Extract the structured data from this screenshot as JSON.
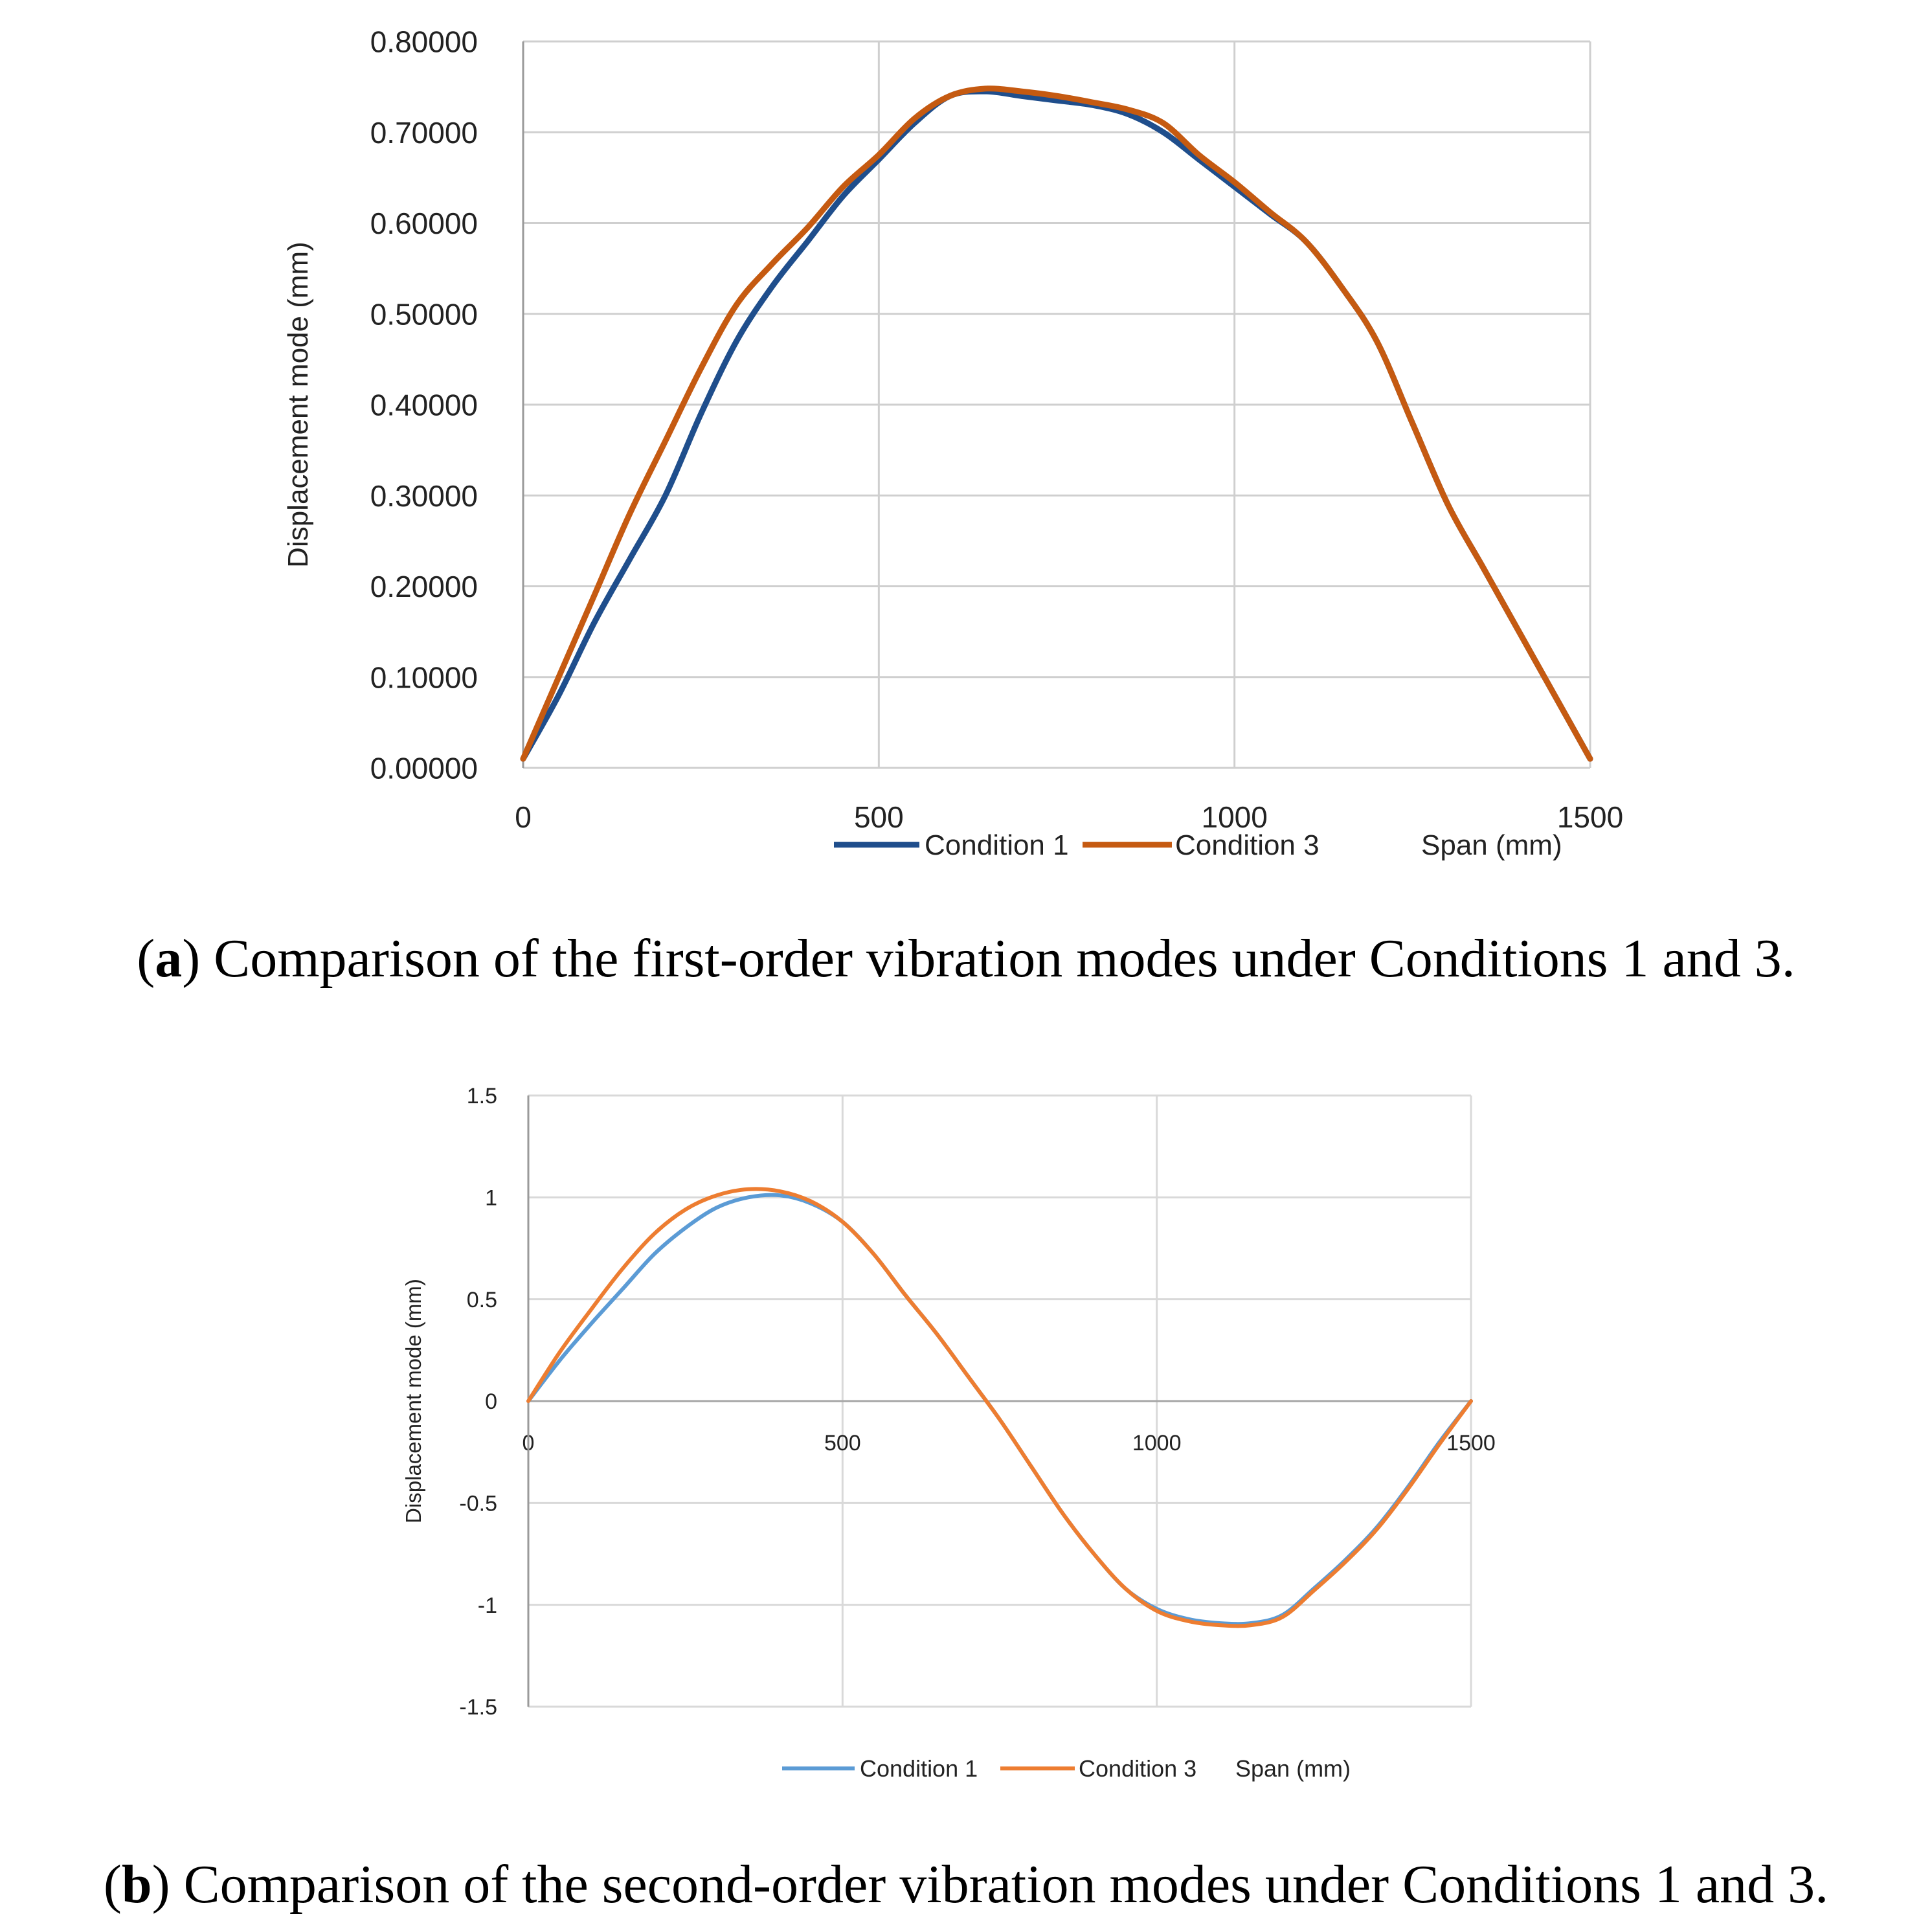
{
  "chart_data": [
    {
      "type": "line",
      "panel": "a",
      "ylabel": "Displacement mode (mm)",
      "xlabel": "Span (mm)",
      "xlim": [
        0,
        1500
      ],
      "ylim": [
        0,
        0.8
      ],
      "xticks": [
        "0",
        "500",
        "1000",
        "1500"
      ],
      "yticks": [
        "0.00000",
        "0.10000",
        "0.20000",
        "0.30000",
        "0.40000",
        "0.50000",
        "0.60000",
        "0.70000",
        "0.80000"
      ],
      "grid": true,
      "legend": "bottom",
      "series": [
        {
          "name": "Condition 1",
          "color": "#1f4e8c",
          "x": [
            0,
            50,
            100,
            150,
            200,
            250,
            300,
            350,
            400,
            450,
            500,
            550,
            600,
            650,
            700,
            750,
            800,
            850,
            900,
            950,
            1000,
            1050,
            1100,
            1150,
            1200,
            1250,
            1300,
            1350,
            1400,
            1450,
            1500
          ],
          "y": [
            0.01,
            0.08,
            0.16,
            0.23,
            0.3,
            0.39,
            0.47,
            0.53,
            0.58,
            0.63,
            0.67,
            0.71,
            0.74,
            0.745,
            0.74,
            0.735,
            0.73,
            0.72,
            0.7,
            0.67,
            0.64,
            0.61,
            0.58,
            0.53,
            0.47,
            0.38,
            0.29,
            0.22,
            0.15,
            0.08,
            0.01
          ]
        },
        {
          "name": "Condition 3",
          "color": "#c55a11",
          "x": [
            0,
            50,
            100,
            150,
            200,
            250,
            300,
            350,
            400,
            450,
            500,
            550,
            600,
            650,
            700,
            750,
            800,
            850,
            900,
            950,
            1000,
            1050,
            1100,
            1150,
            1200,
            1250,
            1300,
            1350,
            1400,
            1450,
            1500
          ],
          "y": [
            0.01,
            0.1,
            0.19,
            0.28,
            0.36,
            0.44,
            0.51,
            0.555,
            0.595,
            0.64,
            0.675,
            0.715,
            0.74,
            0.748,
            0.745,
            0.74,
            0.733,
            0.725,
            0.71,
            0.675,
            0.645,
            0.612,
            0.58,
            0.53,
            0.47,
            0.38,
            0.29,
            0.22,
            0.15,
            0.08,
            0.01
          ]
        }
      ]
    },
    {
      "type": "line",
      "panel": "b",
      "ylabel": "Displacement mode (mm)",
      "xlabel": "Span (mm)",
      "xlim": [
        0,
        1500
      ],
      "ylim": [
        -1.5,
        1.5
      ],
      "xticks": [
        "0",
        "500",
        "1000",
        "1500"
      ],
      "yticks": [
        "-1.5",
        "-1",
        "-0.5",
        "0",
        "0.5",
        "1",
        "1.5"
      ],
      "grid": true,
      "legend": "bottom",
      "series": [
        {
          "name": "Condition 1",
          "color": "#5b9bd5",
          "x": [
            0,
            50,
            100,
            150,
            200,
            250,
            300,
            350,
            400,
            450,
            500,
            550,
            600,
            650,
            700,
            750,
            800,
            850,
            900,
            950,
            1000,
            1050,
            1100,
            1150,
            1200,
            1250,
            1300,
            1350,
            1400,
            1450,
            1500
          ],
          "y": [
            0,
            0.2,
            0.38,
            0.55,
            0.72,
            0.85,
            0.95,
            1.0,
            1.01,
            0.97,
            0.88,
            0.72,
            0.52,
            0.33,
            0.12,
            -0.09,
            -0.32,
            -0.55,
            -0.75,
            -0.92,
            -1.02,
            -1.07,
            -1.09,
            -1.09,
            -1.05,
            -0.92,
            -0.78,
            -0.62,
            -0.42,
            -0.2,
            0
          ]
        },
        {
          "name": "Condition 3",
          "color": "#ed7d31",
          "x": [
            0,
            50,
            100,
            150,
            200,
            250,
            300,
            350,
            400,
            450,
            500,
            550,
            600,
            650,
            700,
            750,
            800,
            850,
            900,
            950,
            1000,
            1050,
            1100,
            1150,
            1200,
            1250,
            1300,
            1350,
            1400,
            1450,
            1500
          ],
          "y": [
            0,
            0.24,
            0.45,
            0.65,
            0.82,
            0.94,
            1.01,
            1.04,
            1.03,
            0.98,
            0.88,
            0.72,
            0.52,
            0.33,
            0.12,
            -0.09,
            -0.32,
            -0.55,
            -0.75,
            -0.92,
            -1.03,
            -1.08,
            -1.1,
            -1.1,
            -1.06,
            -0.93,
            -0.79,
            -0.63,
            -0.43,
            -0.21,
            0
          ]
        }
      ]
    }
  ],
  "captions": {
    "a": {
      "letter": "a",
      "text": "Comparison of the first-order vibration modes under Conditions 1 and 3."
    },
    "b": {
      "letter": "b",
      "text": "Comparison of the second-order vibration modes under Conditions 1 and 3."
    }
  }
}
